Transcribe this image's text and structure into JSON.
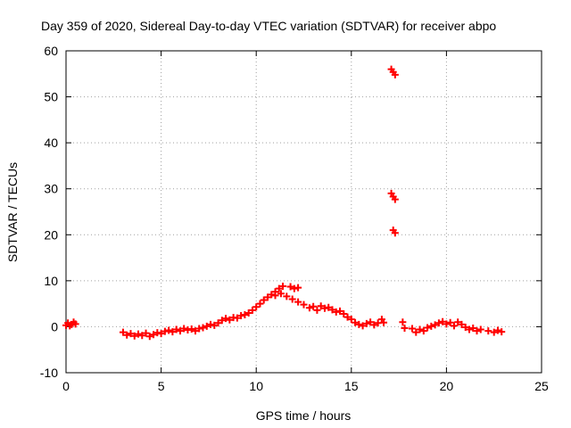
{
  "chart_data": {
    "type": "scatter",
    "title": "Day 359 of 2020, Sidereal Day-to-day VTEC variation (SDTVAR) for receiver abpo",
    "xlabel": "GPS time / hours",
    "ylabel": "SDTVAR / TECUs",
    "xlim": [
      0,
      25
    ],
    "ylim": [
      -10,
      60
    ],
    "x_ticks": [
      "0",
      "5",
      "10",
      "15",
      "20",
      "25"
    ],
    "y_ticks": [
      "-10",
      "0",
      "10",
      "20",
      "30",
      "40",
      "50",
      "60"
    ],
    "grid": true,
    "marker": "+",
    "color": "#ff0000",
    "series": [
      {
        "name": "SDTVAR",
        "points": [
          [
            0.0,
            0.3
          ],
          [
            0.1,
            0.8
          ],
          [
            0.2,
            0.2
          ],
          [
            0.3,
            0.5
          ],
          [
            0.4,
            1.0
          ],
          [
            0.5,
            0.6
          ],
          [
            3.0,
            -1.2
          ],
          [
            3.2,
            -1.8
          ],
          [
            3.4,
            -1.5
          ],
          [
            3.6,
            -2.0
          ],
          [
            3.8,
            -1.6
          ],
          [
            4.0,
            -1.9
          ],
          [
            4.2,
            -1.4
          ],
          [
            4.4,
            -2.1
          ],
          [
            4.6,
            -1.7
          ],
          [
            4.8,
            -1.3
          ],
          [
            5.0,
            -1.5
          ],
          [
            5.2,
            -1.0
          ],
          [
            5.4,
            -0.8
          ],
          [
            5.6,
            -1.1
          ],
          [
            5.8,
            -0.6
          ],
          [
            6.0,
            -0.9
          ],
          [
            6.2,
            -0.4
          ],
          [
            6.4,
            -0.7
          ],
          [
            6.6,
            -0.5
          ],
          [
            6.8,
            -0.9
          ],
          [
            7.0,
            -0.4
          ],
          [
            7.2,
            -0.2
          ],
          [
            7.4,
            0.1
          ],
          [
            7.6,
            0.5
          ],
          [
            7.8,
            0.3
          ],
          [
            8.0,
            0.8
          ],
          [
            8.2,
            1.4
          ],
          [
            8.4,
            1.8
          ],
          [
            8.6,
            1.5
          ],
          [
            8.8,
            2.0
          ],
          [
            9.0,
            1.9
          ],
          [
            9.2,
            2.4
          ],
          [
            9.4,
            2.6
          ],
          [
            9.6,
            3.0
          ],
          [
            9.8,
            3.6
          ],
          [
            10.0,
            4.3
          ],
          [
            10.2,
            5.0
          ],
          [
            10.4,
            5.8
          ],
          [
            10.6,
            6.4
          ],
          [
            10.8,
            7.0
          ],
          [
            11.0,
            7.6
          ],
          [
            11.2,
            8.3
          ],
          [
            11.4,
            8.8
          ],
          [
            11.0,
            6.8
          ],
          [
            11.3,
            7.2
          ],
          [
            11.6,
            6.6
          ],
          [
            11.8,
            8.7
          ],
          [
            12.0,
            8.3
          ],
          [
            12.2,
            8.5
          ],
          [
            11.9,
            6.0
          ],
          [
            12.2,
            5.4
          ],
          [
            12.5,
            4.8
          ],
          [
            12.8,
            4.1
          ],
          [
            13.0,
            4.4
          ],
          [
            13.2,
            3.6
          ],
          [
            13.4,
            4.5
          ],
          [
            13.6,
            4.0
          ],
          [
            13.8,
            4.2
          ],
          [
            14.0,
            3.7
          ],
          [
            14.2,
            3.2
          ],
          [
            14.4,
            3.4
          ],
          [
            14.6,
            2.8
          ],
          [
            14.8,
            2.1
          ],
          [
            15.0,
            1.6
          ],
          [
            15.2,
            0.9
          ],
          [
            15.4,
            0.5
          ],
          [
            15.6,
            0.2
          ],
          [
            15.8,
            0.7
          ],
          [
            16.0,
            1.0
          ],
          [
            16.2,
            0.4
          ],
          [
            16.4,
            0.8
          ],
          [
            16.6,
            1.6
          ],
          [
            16.7,
            0.9
          ],
          [
            17.1,
            56.0
          ],
          [
            17.2,
            55.4
          ],
          [
            17.3,
            54.8
          ],
          [
            17.1,
            29.0
          ],
          [
            17.2,
            28.3
          ],
          [
            17.3,
            27.7
          ],
          [
            17.2,
            21.0
          ],
          [
            17.3,
            20.4
          ],
          [
            17.7,
            1.0
          ],
          [
            17.8,
            -0.3
          ],
          [
            18.2,
            -0.4
          ],
          [
            18.4,
            -1.2
          ],
          [
            18.6,
            -0.6
          ],
          [
            18.8,
            -0.9
          ],
          [
            19.0,
            -0.2
          ],
          [
            19.2,
            0.1
          ],
          [
            19.4,
            0.4
          ],
          [
            19.6,
            0.8
          ],
          [
            19.8,
            1.1
          ],
          [
            20.0,
            0.6
          ],
          [
            20.2,
            0.9
          ],
          [
            20.4,
            0.2
          ],
          [
            20.6,
            1.0
          ],
          [
            20.8,
            0.5
          ],
          [
            21.0,
            -0.1
          ],
          [
            21.2,
            -0.6
          ],
          [
            21.4,
            -0.3
          ],
          [
            21.6,
            -0.9
          ],
          [
            21.8,
            -0.6
          ],
          [
            22.2,
            -0.9
          ],
          [
            22.5,
            -1.2
          ],
          [
            22.7,
            -0.8
          ],
          [
            22.9,
            -1.1
          ]
        ]
      }
    ]
  }
}
